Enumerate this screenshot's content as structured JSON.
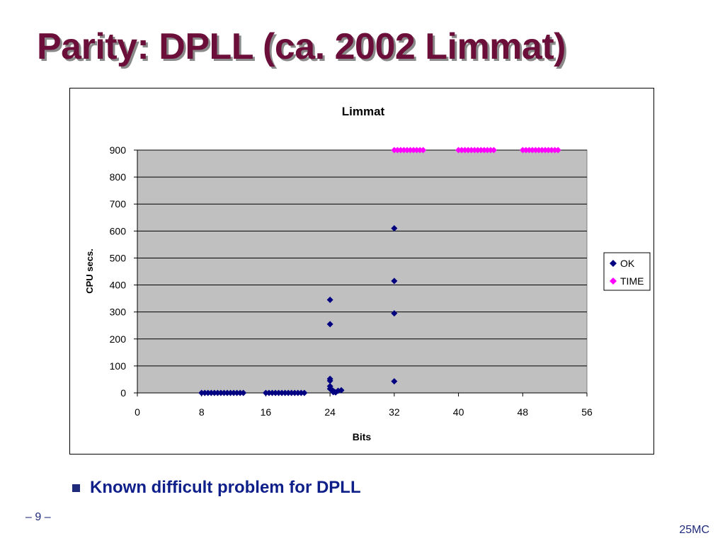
{
  "slide": {
    "title": "Parity: DPLL (ca. 2002 Limmat)",
    "bullet": "Known difficult problem for DPLL",
    "page_number": "– 9 –",
    "footer_tag": "25MC"
  },
  "chart_data": {
    "type": "scatter",
    "title": "Limmat",
    "xlabel": "Bits",
    "ylabel": "CPU secs.",
    "xlim": [
      0,
      56
    ],
    "ylim": [
      0,
      900
    ],
    "xticks": [
      0,
      8,
      16,
      24,
      32,
      40,
      48,
      56
    ],
    "yticks": [
      0,
      100,
      200,
      300,
      400,
      500,
      600,
      700,
      800,
      900
    ],
    "grid": "horizontal",
    "legend": "right",
    "colors": {
      "plot_bg": "#c0c0c0",
      "OK": "#000080",
      "TIME": "#ff00ff"
    },
    "series": [
      {
        "name": "OK",
        "points": [
          [
            8,
            0
          ],
          [
            8.4,
            0
          ],
          [
            8.8,
            0
          ],
          [
            9.2,
            0
          ],
          [
            9.6,
            0
          ],
          [
            10,
            0
          ],
          [
            10.4,
            0
          ],
          [
            10.8,
            0
          ],
          [
            11.2,
            0
          ],
          [
            11.6,
            0
          ],
          [
            12,
            0
          ],
          [
            12.4,
            0
          ],
          [
            12.8,
            0
          ],
          [
            13.2,
            0
          ],
          [
            16,
            0
          ],
          [
            16.4,
            0
          ],
          [
            16.8,
            0
          ],
          [
            17.2,
            0
          ],
          [
            17.6,
            0
          ],
          [
            18,
            0
          ],
          [
            18.4,
            0
          ],
          [
            18.8,
            0
          ],
          [
            19.2,
            0
          ],
          [
            19.6,
            0
          ],
          [
            20,
            0
          ],
          [
            20.4,
            0
          ],
          [
            20.8,
            0
          ],
          [
            24,
            345
          ],
          [
            24,
            255
          ],
          [
            24,
            52
          ],
          [
            24,
            45
          ],
          [
            24,
            25
          ],
          [
            24,
            15
          ],
          [
            24.3,
            10
          ],
          [
            24.5,
            5
          ],
          [
            24.7,
            2
          ],
          [
            25,
            8
          ],
          [
            25.4,
            10
          ],
          [
            24.4,
            3
          ],
          [
            32,
            610
          ],
          [
            32,
            415
          ],
          [
            32,
            295
          ],
          [
            32,
            43
          ]
        ]
      },
      {
        "name": "TIME",
        "points": [
          [
            32,
            900
          ],
          [
            32.4,
            900
          ],
          [
            32.8,
            900
          ],
          [
            33.2,
            900
          ],
          [
            33.6,
            900
          ],
          [
            34,
            900
          ],
          [
            34.4,
            900
          ],
          [
            34.8,
            900
          ],
          [
            35.2,
            900
          ],
          [
            35.6,
            900
          ],
          [
            40,
            900
          ],
          [
            40.4,
            900
          ],
          [
            40.8,
            900
          ],
          [
            41.2,
            900
          ],
          [
            41.6,
            900
          ],
          [
            42,
            900
          ],
          [
            42.4,
            900
          ],
          [
            42.8,
            900
          ],
          [
            43.2,
            900
          ],
          [
            43.6,
            900
          ],
          [
            44,
            900
          ],
          [
            44.4,
            900
          ],
          [
            48,
            900
          ],
          [
            48.4,
            900
          ],
          [
            48.8,
            900
          ],
          [
            49.2,
            900
          ],
          [
            49.6,
            900
          ],
          [
            50,
            900
          ],
          [
            50.4,
            900
          ],
          [
            50.8,
            900
          ],
          [
            51.2,
            900
          ],
          [
            51.6,
            900
          ],
          [
            52,
            900
          ],
          [
            52.4,
            900
          ]
        ]
      }
    ]
  }
}
